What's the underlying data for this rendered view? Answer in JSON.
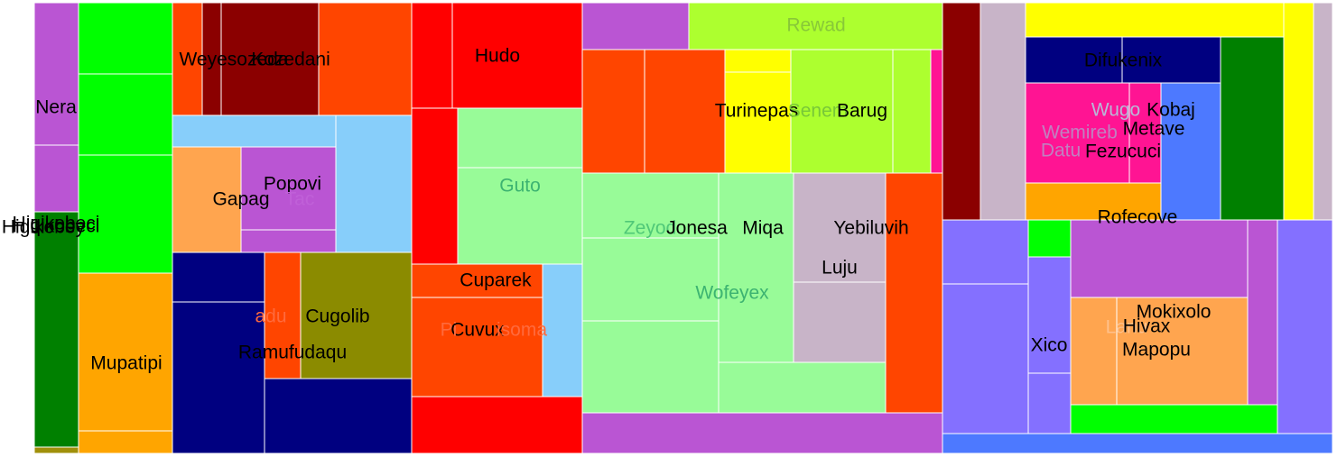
{
  "chart_data": {
    "type": "treemap",
    "cells": [
      {
        "label": "",
        "color": "#ba55d3"
      },
      {
        "label": "",
        "color": "#ba55d3"
      },
      {
        "label": "",
        "color": "#008000"
      },
      {
        "label": "",
        "color": "#a0900a"
      },
      {
        "label": "",
        "color": "#00ff00"
      },
      {
        "label": "",
        "color": "#00ff00"
      },
      {
        "label": "",
        "color": "#00ff00"
      },
      {
        "label": "",
        "color": "#ffa500"
      },
      {
        "label": "",
        "color": "#ffa500"
      },
      {
        "label": "",
        "color": "#ff4500"
      },
      {
        "label": "",
        "color": "#8b0000"
      },
      {
        "label": "",
        "color": "#8b0000"
      },
      {
        "label": "",
        "color": "#ff4500"
      },
      {
        "label": "",
        "color": "#87cefa"
      },
      {
        "label": "",
        "color": "#87cefa"
      },
      {
        "label": "",
        "color": "#ffa54f"
      },
      {
        "label": "",
        "color": "#ba55d3"
      },
      {
        "label": "",
        "color": "#ba55d3"
      },
      {
        "label": "",
        "color": "#000080"
      },
      {
        "label": "",
        "color": "#000080"
      },
      {
        "label": "",
        "color": "#ff4500"
      },
      {
        "label": "",
        "color": "#8b8b00"
      },
      {
        "label": "",
        "color": "#000080"
      },
      {
        "label": "",
        "color": "#ff0000"
      },
      {
        "label": "",
        "color": "#ff0000"
      },
      {
        "label": "",
        "color": "#ff0000"
      },
      {
        "label": "",
        "color": "#98fb98"
      },
      {
        "label": "",
        "color": "#98fb98"
      },
      {
        "label": "",
        "color": "#ff4500"
      },
      {
        "label": "",
        "color": "#87cefa"
      },
      {
        "label": "",
        "color": "#ff4500"
      },
      {
        "label": "",
        "color": "#ff0000"
      },
      {
        "label": "",
        "color": "#ba55d3"
      },
      {
        "label": "",
        "color": "#adff2f"
      },
      {
        "label": "",
        "color": "#ff4500"
      },
      {
        "label": "",
        "color": "#ff4500"
      },
      {
        "label": "",
        "color": "#ffff00"
      },
      {
        "label": "",
        "color": "#ffff00"
      },
      {
        "label": "",
        "color": "#adff2f"
      },
      {
        "label": "",
        "color": "#adff2f"
      },
      {
        "label": "",
        "color": "#ff1493"
      },
      {
        "label": "",
        "color": "#98fb98"
      },
      {
        "label": "",
        "color": "#98fb98"
      },
      {
        "label": "",
        "color": "#98fb98"
      },
      {
        "label": "",
        "color": "#98fb98"
      },
      {
        "label": "",
        "color": "#98fb98"
      },
      {
        "label": "",
        "color": "#c8b4c8"
      },
      {
        "label": "",
        "color": "#c8b4c8"
      },
      {
        "label": "",
        "color": "#ff4500"
      },
      {
        "label": "",
        "color": "#ba55d3"
      },
      {
        "label": "",
        "color": "#8b0000"
      },
      {
        "label": "",
        "color": "#c8b4c8"
      },
      {
        "label": "",
        "color": "#ffff00"
      },
      {
        "label": "",
        "color": "#ffff00"
      },
      {
        "label": "",
        "color": "#c8b4c8"
      },
      {
        "label": "",
        "color": "#000080"
      },
      {
        "label": "",
        "color": "#000080"
      },
      {
        "label": "",
        "color": "#008000"
      },
      {
        "label": "",
        "color": "#ff1493"
      },
      {
        "label": "",
        "color": "#ff1493"
      },
      {
        "label": "",
        "color": "#4d79ff"
      },
      {
        "label": "",
        "color": "#ffa500"
      },
      {
        "label": "",
        "color": "#8470ff"
      },
      {
        "label": "",
        "color": "#8470ff"
      },
      {
        "label": "",
        "color": "#00ff00"
      },
      {
        "label": "",
        "color": "#8470ff"
      },
      {
        "label": "",
        "color": "#8470ff"
      },
      {
        "label": "",
        "color": "#ba55d3"
      },
      {
        "label": "",
        "color": "#ffa54f"
      },
      {
        "label": "",
        "color": "#ffa54f"
      },
      {
        "label": "",
        "color": "#00ff00"
      },
      {
        "label": "",
        "color": "#ba55d3"
      },
      {
        "label": "",
        "color": "#8470ff"
      },
      {
        "label": "",
        "color": "#4d79ff"
      }
    ],
    "labels": [
      {
        "text": "Nera",
        "color": "#000000"
      },
      {
        "text": "Higikobeci",
        "color": "#000000"
      },
      {
        "text": "Hiqikobeci",
        "color": "#000000"
      },
      {
        "text": "Higikobey",
        "color": "#000000"
      },
      {
        "text": "Mupatipi",
        "color": "#000000"
      },
      {
        "text": "Weyesozeda",
        "color": "#000000"
      },
      {
        "text": "Kozedani",
        "color": "#000000"
      },
      {
        "text": "Popovi",
        "color": "#000000"
      },
      {
        "text": "Gapag",
        "color": "#000000"
      },
      {
        "text": "Tac",
        "color": "#c060d8"
      },
      {
        "text": "Cugolib",
        "color": "#000000"
      },
      {
        "text": "adu",
        "color": "#ff6a3d"
      },
      {
        "text": "Ramufudaqu",
        "color": "#000000"
      },
      {
        "text": "Hudo",
        "color": "#000000"
      },
      {
        "text": "Guto",
        "color": "#3cb371"
      },
      {
        "text": "Cuparek",
        "color": "#000000"
      },
      {
        "text": "Cuvux",
        "color": "#000000"
      },
      {
        "text": "Pi",
        "color": "#ff6a3d"
      },
      {
        "text": "isoma",
        "color": "#ff6a3d"
      },
      {
        "text": "Rewad",
        "color": "#88c838"
      },
      {
        "text": "Turinepas",
        "color": "#000000"
      },
      {
        "text": "Senem",
        "color": "#78c838"
      },
      {
        "text": "Barug",
        "color": "#000000"
      },
      {
        "text": "Zeyod",
        "color": "#50c878"
      },
      {
        "text": "Jonesa",
        "color": "#000000"
      },
      {
        "text": "Miqa",
        "color": "#000000"
      },
      {
        "text": "Wofeyex",
        "color": "#3cb371"
      },
      {
        "text": "Yebiluvih",
        "color": "#000000"
      },
      {
        "text": "Luju",
        "color": "#000000"
      },
      {
        "text": "Difukenix",
        "color": "#000000"
      },
      {
        "text": "Wemireb",
        "color": "#c080c0"
      },
      {
        "text": "Wugo",
        "color": "#b8b8d8"
      },
      {
        "text": "Kobaj",
        "color": "#000000"
      },
      {
        "text": "Metave",
        "color": "#000000"
      },
      {
        "text": "Datu",
        "color": "#c080c0"
      },
      {
        "text": "Fezucuci",
        "color": "#000000"
      },
      {
        "text": "Rofecove",
        "color": "#000000"
      },
      {
        "text": "Xico",
        "color": "#000000"
      },
      {
        "text": "Lanu",
        "color": "#ffc08a"
      },
      {
        "text": "Mokixolo",
        "color": "#000000"
      },
      {
        "text": "Hivax",
        "color": "#000000"
      },
      {
        "text": "Mapopu",
        "color": "#000000"
      }
    ]
  }
}
